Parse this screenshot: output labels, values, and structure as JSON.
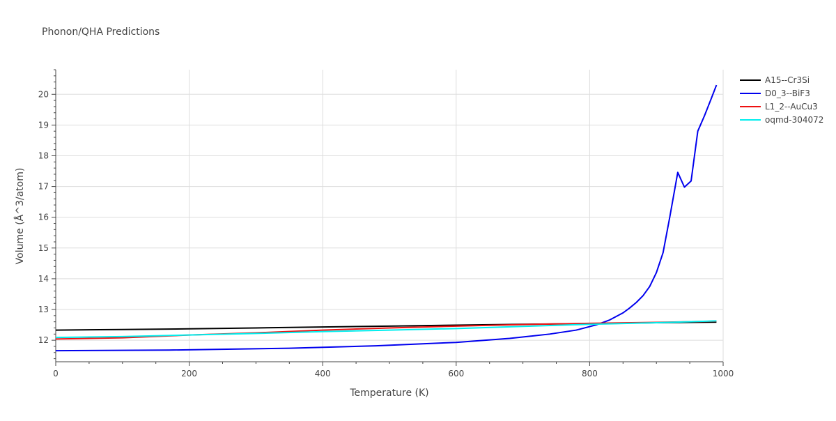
{
  "chart_data": {
    "type": "line",
    "title": "Phonon/QHA Predictions",
    "xlabel": "Temperature (K)",
    "ylabel": "Volume (Å^3/atom)",
    "xlim": [
      0,
      1000
    ],
    "ylim": [
      11.3,
      20.8
    ],
    "x_ticks": [
      0,
      200,
      400,
      600,
      800,
      1000
    ],
    "y_ticks": [
      12,
      13,
      14,
      15,
      16,
      17,
      18,
      19,
      20
    ],
    "grid": true,
    "legend_position": "top-right",
    "series": [
      {
        "name": "A15--Cr3Si",
        "color": "#000000",
        "points": [
          [
            0,
            12.33
          ],
          [
            100,
            12.35
          ],
          [
            200,
            12.37
          ],
          [
            300,
            12.4
          ],
          [
            400,
            12.43
          ],
          [
            500,
            12.46
          ],
          [
            600,
            12.49
          ],
          [
            700,
            12.52
          ],
          [
            800,
            12.54
          ],
          [
            900,
            12.57
          ],
          [
            990,
            12.59
          ]
        ]
      },
      {
        "name": "D0_3--BiF3",
        "color": "#0000ee",
        "points": [
          [
            0,
            11.66
          ],
          [
            170,
            11.68
          ],
          [
            350,
            11.74
          ],
          [
            480,
            11.82
          ],
          [
            600,
            11.93
          ],
          [
            680,
            12.06
          ],
          [
            740,
            12.2
          ],
          [
            780,
            12.33
          ],
          [
            810,
            12.5
          ],
          [
            830,
            12.66
          ],
          [
            850,
            12.89
          ],
          [
            860,
            13.05
          ],
          [
            870,
            13.23
          ],
          [
            880,
            13.45
          ],
          [
            890,
            13.75
          ],
          [
            900,
            14.2
          ],
          [
            910,
            14.85
          ],
          [
            920,
            16.0
          ],
          [
            932,
            17.46
          ],
          [
            942,
            16.98
          ],
          [
            952,
            17.18
          ],
          [
            962,
            18.8
          ],
          [
            972,
            19.3
          ],
          [
            982,
            19.85
          ],
          [
            990,
            20.3
          ]
        ]
      },
      {
        "name": "L1_2--AuCu3",
        "color": "#ee1111",
        "points": [
          [
            0,
            12.04
          ],
          [
            100,
            12.08
          ],
          [
            200,
            12.17
          ],
          [
            300,
            12.24
          ],
          [
            400,
            12.33
          ],
          [
            500,
            12.4
          ],
          [
            600,
            12.46
          ],
          [
            700,
            12.51
          ],
          [
            800,
            12.55
          ],
          [
            900,
            12.58
          ],
          [
            990,
            12.62
          ]
        ]
      },
      {
        "name": "oqmd-304072",
        "color": "#00eeee",
        "points": [
          [
            0,
            12.09
          ],
          [
            100,
            12.12
          ],
          [
            200,
            12.17
          ],
          [
            300,
            12.22
          ],
          [
            400,
            12.28
          ],
          [
            500,
            12.33
          ],
          [
            600,
            12.38
          ],
          [
            700,
            12.45
          ],
          [
            800,
            12.52
          ],
          [
            900,
            12.57
          ],
          [
            990,
            12.63
          ]
        ]
      }
    ]
  }
}
